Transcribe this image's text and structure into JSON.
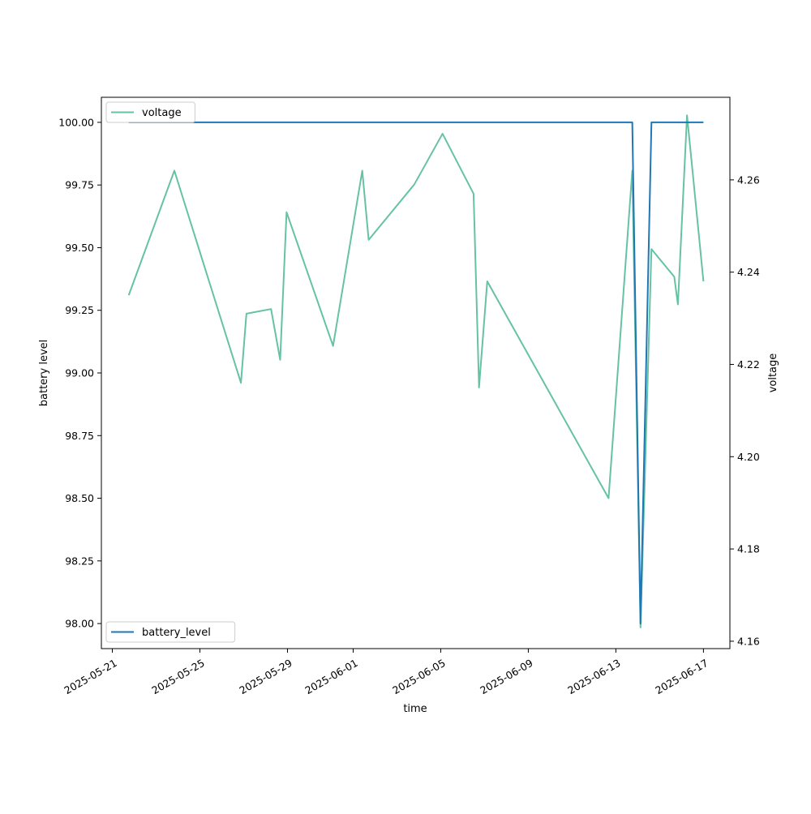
{
  "chart_data": {
    "type": "line",
    "xlabel": "time",
    "ylabel_left": "battery level",
    "ylabel_right": "voltage",
    "x_ticks": [
      "2025-05-21",
      "2025-05-25",
      "2025-05-29",
      "2025-06-01",
      "2025-06-05",
      "2025-06-09",
      "2025-06-13",
      "2025-06-17"
    ],
    "xlim": [
      "2025-05-20T12:00",
      "2025-06-18T05:00"
    ],
    "left_axis": {
      "ylim": [
        97.9,
        100.1
      ],
      "ticks": [
        "98.00",
        "98.25",
        "98.50",
        "98.75",
        "99.00",
        "99.25",
        "99.50",
        "99.75",
        "100.00"
      ]
    },
    "right_axis": {
      "ylim": [
        4.1584,
        4.2779
      ],
      "ticks": [
        "4.16",
        "4.18",
        "4.20",
        "4.22",
        "4.24",
        "4.26"
      ]
    },
    "series": [
      {
        "name": "battery_level",
        "axis": "left",
        "color": "#1f77b4",
        "legend": "bottom-left",
        "points": [
          [
            "2025-05-21T18:00",
            100.0
          ],
          [
            "2025-06-13T12:00",
            100.0
          ],
          [
            "2025-06-13T18:00",
            100.0
          ],
          [
            "2025-06-14T03:00",
            98.0
          ],
          [
            "2025-06-14T15:00",
            100.0
          ],
          [
            "2025-06-17T00:00",
            100.0
          ]
        ]
      },
      {
        "name": "voltage",
        "axis": "right",
        "color": "#66c2a5",
        "legend": "top-left",
        "points": [
          [
            "2025-05-21T18:00",
            4.235
          ],
          [
            "2025-05-23T20:00",
            4.262
          ],
          [
            "2025-05-26T21:00",
            4.216
          ],
          [
            "2025-05-27T03:00",
            4.231
          ],
          [
            "2025-05-28T06:00",
            4.232
          ],
          [
            "2025-05-28T16:00",
            4.221
          ],
          [
            "2025-05-28T23:00",
            4.253
          ],
          [
            "2025-05-31T02:00",
            4.224
          ],
          [
            "2025-06-01T10:00",
            4.262
          ],
          [
            "2025-06-01T17:00",
            4.247
          ],
          [
            "2025-06-03T19:00",
            4.259
          ],
          [
            "2025-06-05T02:00",
            4.27
          ],
          [
            "2025-06-06T12:00",
            4.257
          ],
          [
            "2025-06-06T18:00",
            4.215
          ],
          [
            "2025-06-07T03:00",
            4.238
          ],
          [
            "2025-06-12T16:00",
            4.191
          ],
          [
            "2025-06-13T18:00",
            4.262
          ],
          [
            "2025-06-14T03:00",
            4.163
          ],
          [
            "2025-06-14T15:00",
            4.245
          ],
          [
            "2025-06-15T16:00",
            4.239
          ],
          [
            "2025-06-15T20:00",
            4.233
          ],
          [
            "2025-06-16T06:00",
            4.274
          ],
          [
            "2025-06-17T00:00",
            4.238
          ]
        ]
      }
    ]
  }
}
